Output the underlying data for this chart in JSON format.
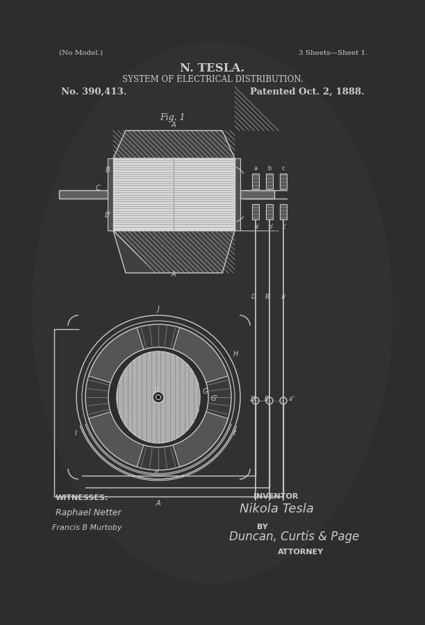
{
  "bg_color": "#2d2d2d",
  "line_color": "#cccccc",
  "text_color": "#cccccc",
  "title_line1": "N. TESLA.",
  "title_line2": "SYSTEM OF ELECTRICAL DISTRIBUTION.",
  "no_model": "(No Model.)",
  "sheets": "3 Sheets—Sheet 1.",
  "patent_no": "No. 390,413.",
  "patented": "Patented Oct. 2, 1888.",
  "fig1_label": "Fig. 1",
  "witnesses_label": "WITNESSES:",
  "witness1": "Raphael Netter",
  "witness2": "Francis B Murtoby",
  "inventor_label": "INVENTOR",
  "inventor_name": "Nikola Tesla",
  "by_label": "BY",
  "attorney_firm": "Duncan, Curtis & Page",
  "attorney_label": "ATTORNEY",
  "gradient_center_color": "#3a3a3a",
  "gradient_edge_color": "#1a1a1a"
}
